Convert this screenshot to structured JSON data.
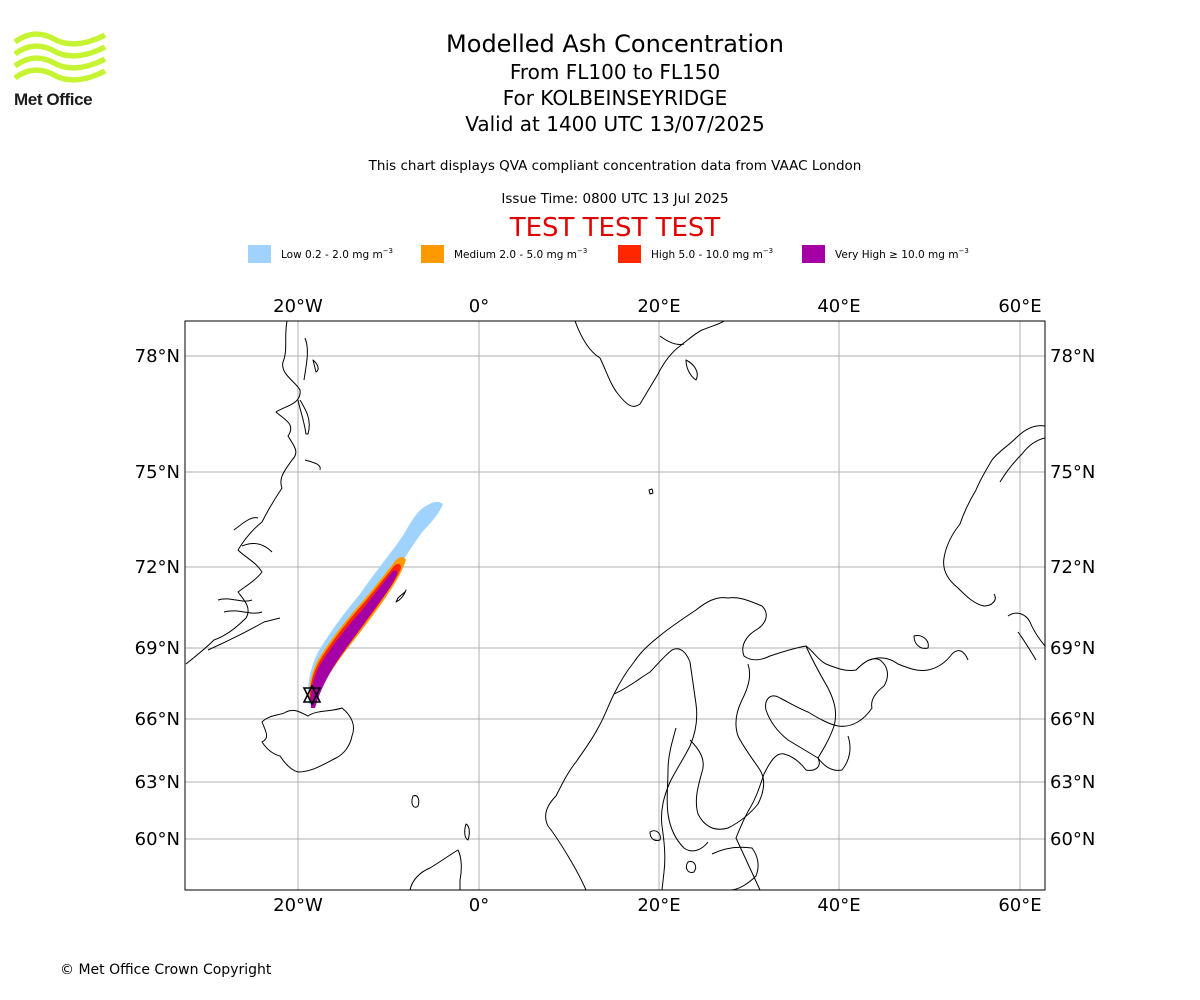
{
  "logo": {
    "name": "Met Office"
  },
  "header": {
    "title": "Modelled Ash Concentration",
    "levels": "From FL100 to FL150",
    "volcano": "For KOLBEINSEYRIDGE",
    "valid": "Valid at 1400 UTC 13/07/2025",
    "description": "This chart displays QVA compliant concentration data from VAAC London",
    "issue_time": "Issue Time: 0800 UTC 13 Jul 2025",
    "test_banner": "TEST TEST TEST"
  },
  "legend": [
    {
      "label": "Low 0.2 - 2.0 mg m",
      "color": "#9fd3fd"
    },
    {
      "label": "Medium 2.0 - 5.0 mg m",
      "color": "#ff9900"
    },
    {
      "label": "High 5.0 - 10.0 mg m",
      "color": "#ff2600"
    },
    {
      "label": "Very High ≥ 10.0 mg m",
      "color": "#a500a5"
    }
  ],
  "legend_unit_exp": "−3",
  "map": {
    "lon_ticks": [
      "20°W",
      "0°",
      "20°E",
      "40°E",
      "60°E"
    ],
    "lat_ticks": [
      "78°N",
      "75°N",
      "72°N",
      "69°N",
      "66°N",
      "63°N",
      "60°N"
    ],
    "volcano_marker": "volcano-location",
    "coastline_color": "#000000",
    "grid_color": "#b0b0b0"
  },
  "footer": {
    "copyright": "© Met Office Crown Copyright"
  }
}
